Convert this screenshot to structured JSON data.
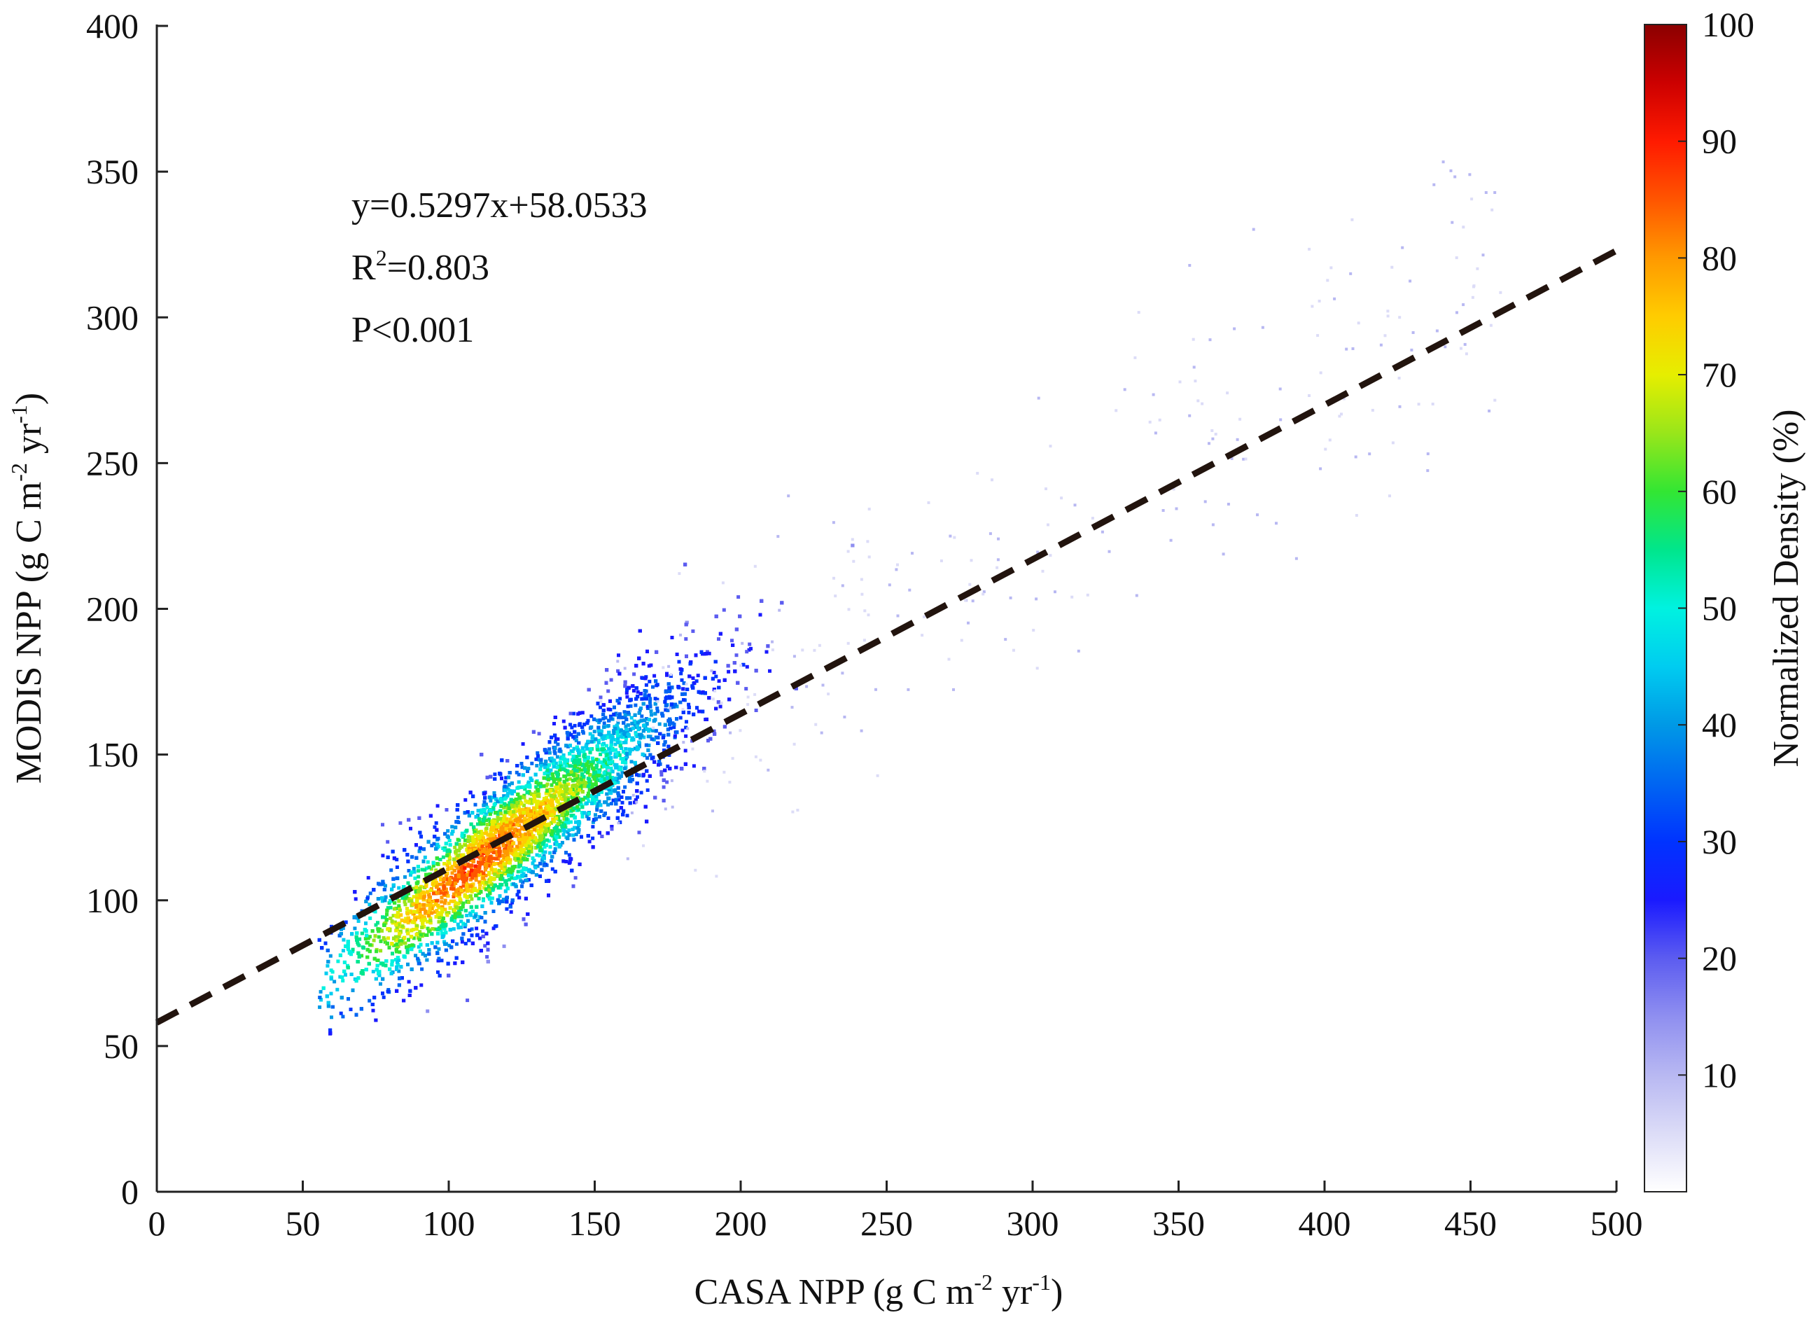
{
  "chart_data": {
    "type": "heatmap",
    "subtype": "density scatter",
    "title": "",
    "xlabel": {
      "base": "CASA NPP (g C m",
      "exp1": "-2",
      "mid": " yr",
      "exp2": "-1",
      "end": ")"
    },
    "ylabel": {
      "base": "MODIS NPP (g C m",
      "exp1": "-2",
      "mid": " yr",
      "exp2": "-1",
      "end": ")"
    },
    "xlim": [
      0,
      500
    ],
    "ylim": [
      0,
      400
    ],
    "x_ticks": [
      "0",
      "50",
      "100",
      "150",
      "200",
      "250",
      "300",
      "350",
      "400",
      "450",
      "500"
    ],
    "y_ticks": [
      "0",
      "50",
      "100",
      "150",
      "200",
      "250",
      "300",
      "350",
      "400"
    ],
    "grid": false,
    "regression": {
      "slope": 0.5297,
      "intercept": 58.0533,
      "x_range": [
        0,
        500
      ],
      "style": "dashed",
      "color": "#22140e"
    },
    "annotations": [
      {
        "type": "equation",
        "text": "y=0.5297x+58.0533"
      },
      {
        "type": "r2",
        "base": "R",
        "sup": "2",
        "rest": "=0.803"
      },
      {
        "type": "p",
        "text": "P<0.001"
      }
    ],
    "point_cloud": {
      "description_of_density_core": "dense band along the regression line",
      "core_x_range": [
        65,
        210
      ],
      "core_y_range": [
        65,
        200
      ],
      "peak_center": [
        110,
        112
      ],
      "outlier_x_max": 460
    },
    "colorbar": {
      "label": "Normalized Density (%)",
      "min": 0,
      "max": 100,
      "ticks": [
        "10",
        "20",
        "30",
        "40",
        "50",
        "60",
        "70",
        "80",
        "90",
        "100"
      ],
      "colors": [
        "#ffffff",
        "#dcdcf7",
        "#b8b8f2",
        "#8f8ff0",
        "#5c5cf0",
        "#1a1aff",
        "#0033ff",
        "#0066f2",
        "#0099e6",
        "#00ccf0",
        "#00f2e0",
        "#00e68c",
        "#33e633",
        "#99e61a",
        "#e6ee00",
        "#ffcc00",
        "#ff9900",
        "#ff5500",
        "#ff1a00",
        "#cc0000",
        "#8b0000"
      ]
    }
  }
}
